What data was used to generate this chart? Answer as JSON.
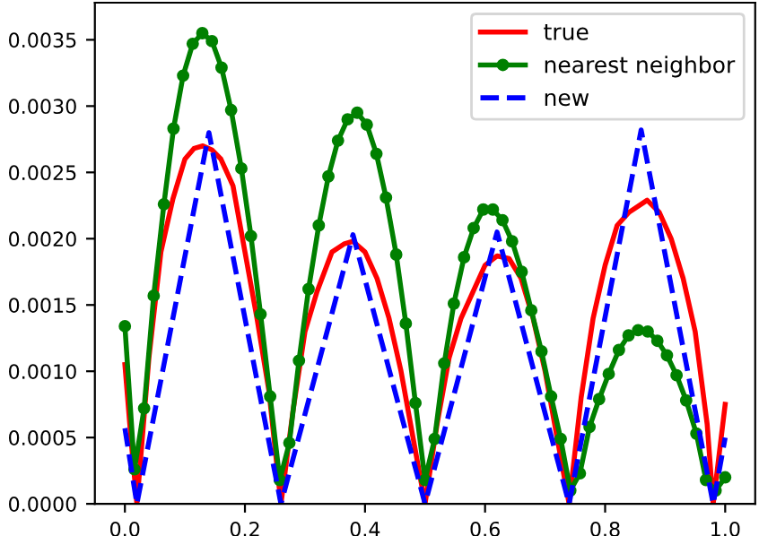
{
  "chart_data": {
    "type": "line",
    "xlim": [
      -0.05,
      1.05
    ],
    "ylim": [
      0,
      0.00378
    ],
    "xticks": [
      {
        "value": 0,
        "label": "0.0"
      },
      {
        "value": 0.2,
        "label": "0.2"
      },
      {
        "value": 0.4,
        "label": "0.4"
      },
      {
        "value": 0.6,
        "label": "0.6"
      },
      {
        "value": 0.8,
        "label": "0.8"
      },
      {
        "value": 1,
        "label": "1.0"
      }
    ],
    "yticks": [
      {
        "value": 0,
        "label": "0.0000"
      },
      {
        "value": 0.0005,
        "label": "0.0005"
      },
      {
        "value": 0.001,
        "label": "0.0010"
      },
      {
        "value": 0.0015,
        "label": "0.0015"
      },
      {
        "value": 0.002,
        "label": "0.0020"
      },
      {
        "value": 0.0025,
        "label": "0.0025"
      },
      {
        "value": 0.003,
        "label": "0.0030"
      },
      {
        "value": 0.0035,
        "label": "0.0035"
      }
    ],
    "grid": false,
    "legend": "top right",
    "series": [
      {
        "name": "true",
        "color": "#ff0000",
        "marker": "none",
        "line_style": "solid",
        "x": [
          0,
          0.01,
          0.02,
          0.04,
          0.06,
          0.08,
          0.1,
          0.115,
          0.13,
          0.145,
          0.16,
          0.18,
          0.2,
          0.22,
          0.24,
          0.26,
          0.28,
          0.3,
          0.32,
          0.345,
          0.365,
          0.38,
          0.4,
          0.42,
          0.44,
          0.46,
          0.48,
          0.5,
          0.52,
          0.54,
          0.56,
          0.58,
          0.6,
          0.62,
          0.64,
          0.66,
          0.68,
          0.7,
          0.72,
          0.74,
          0.76,
          0.78,
          0.8,
          0.82,
          0.84,
          0.87,
          0.89,
          0.91,
          0.93,
          0.95,
          0.97,
          0.98,
          1.0
        ],
        "values": [
          0.00105,
          0.0005,
          0,
          0.0011,
          0.0019,
          0.0023,
          0.0026,
          0.00268,
          0.0027,
          0.00267,
          0.0026,
          0.0024,
          0.0019,
          0.0014,
          0.00085,
          0,
          0.0007,
          0.0013,
          0.0016,
          0.0019,
          0.00196,
          0.00198,
          0.0019,
          0.0017,
          0.0014,
          0.001,
          0.0005,
          0,
          0.0006,
          0.0011,
          0.0014,
          0.0016,
          0.0018,
          0.00187,
          0.00185,
          0.0017,
          0.0014,
          0.001,
          0.0005,
          0,
          0.0008,
          0.0014,
          0.0018,
          0.0021,
          0.0022,
          0.00229,
          0.0022,
          0.002,
          0.0017,
          0.0013,
          0.0006,
          0,
          0.00075
        ]
      },
      {
        "name": "nearest neighbor",
        "color": "#008000",
        "marker": "circle",
        "line_style": "solid",
        "x": [
          0,
          0.016,
          0.032,
          0.048,
          0.065,
          0.081,
          0.097,
          0.113,
          0.129,
          0.145,
          0.161,
          0.177,
          0.194,
          0.21,
          0.226,
          0.242,
          0.258,
          0.274,
          0.29,
          0.306,
          0.323,
          0.339,
          0.355,
          0.371,
          0.387,
          0.403,
          0.419,
          0.435,
          0.452,
          0.468,
          0.484,
          0.5,
          0.516,
          0.532,
          0.548,
          0.565,
          0.581,
          0.597,
          0.613,
          0.629,
          0.645,
          0.661,
          0.677,
          0.694,
          0.71,
          0.726,
          0.742,
          0.758,
          0.774,
          0.79,
          0.806,
          0.823,
          0.839,
          0.855,
          0.871,
          0.887,
          0.903,
          0.919,
          0.935,
          0.952,
          0.968,
          0.984,
          1.0
        ],
        "values": [
          0.00134,
          0.00026,
          0.00072,
          0.00157,
          0.00226,
          0.00283,
          0.00323,
          0.00347,
          0.00355,
          0.00349,
          0.00329,
          0.00297,
          0.00253,
          0.00202,
          0.00143,
          0.00081,
          0.00018,
          0.00046,
          0.00108,
          0.00162,
          0.0021,
          0.00247,
          0.00274,
          0.0029,
          0.00295,
          0.00286,
          0.00264,
          0.00231,
          0.00188,
          0.00136,
          0.00076,
          0.00018,
          0.00049,
          0.00106,
          0.00151,
          0.00186,
          0.00208,
          0.00222,
          0.00222,
          0.00214,
          0.00198,
          0.00175,
          0.00146,
          0.00115,
          0.00081,
          0.00049,
          0.0001,
          0.00023,
          0.00058,
          0.00079,
          0.00098,
          0.00116,
          0.00127,
          0.00131,
          0.0013,
          0.00123,
          0.00112,
          0.00097,
          0.00078,
          0.00053,
          0.00018,
          0.0001,
          0.0002
        ]
      },
      {
        "name": "new",
        "color": "#0000ff",
        "marker": "none",
        "line_style": "dashed",
        "x": [
          0,
          0.02,
          0.14,
          0.26,
          0.38,
          0.5,
          0.62,
          0.74,
          0.86,
          0.98,
          1.0
        ],
        "values": [
          0.00057,
          0,
          0.0028,
          0,
          0.00203,
          0,
          0.00205,
          0,
          0.00282,
          0,
          0.0005
        ]
      }
    ]
  }
}
